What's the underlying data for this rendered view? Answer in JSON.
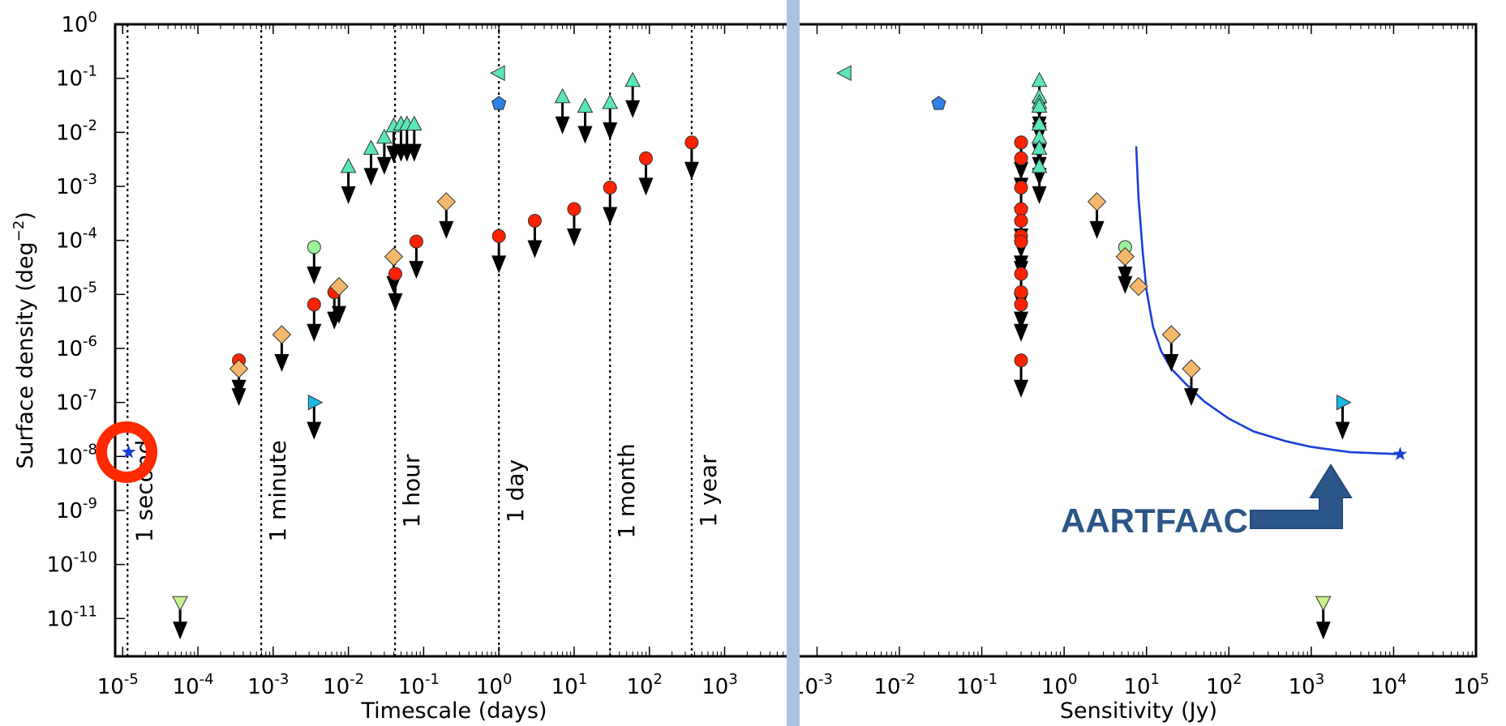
{
  "chart_data": [
    {
      "id": "timescale",
      "type": "scatter",
      "xlabel": "Timescale (days)",
      "ylabel": "Surface density (deg",
      "ylabel_sup": "−2",
      "ylabel_end": ")",
      "x_log": true,
      "y_log": true,
      "xlim_exp": [
        -5.1,
        3.9
      ],
      "ylim_exp": [
        -11.7,
        0.0
      ],
      "x_ticks": [
        "10",
        "10",
        "10",
        "10",
        "10",
        "10",
        "10",
        "10",
        "10"
      ],
      "x_tick_exps": [
        "-5",
        "-4",
        "-3",
        "-2",
        "-1",
        "0",
        "1",
        "2",
        "3"
      ],
      "y_ticks": [
        "10",
        "10",
        "10",
        "10",
        "10",
        "10",
        "10",
        "10",
        "10",
        "10",
        "10",
        "10"
      ],
      "y_tick_exps": [
        "0",
        "-1",
        "-2",
        "-3",
        "-4",
        "-5",
        "-6",
        "-7",
        "-8",
        "-9",
        "-10",
        "-11"
      ],
      "reference_lines": [
        {
          "label": "1 second",
          "x": 1.16e-05
        },
        {
          "label": "1 minute",
          "x": 0.000694
        },
        {
          "label": "1 hour",
          "x": 0.0417
        },
        {
          "label": "1 day",
          "x": 1
        },
        {
          "label": "1 month",
          "x": 30
        },
        {
          "label": "1 year",
          "x": 365
        }
      ],
      "points": [
        {
          "x": 1.2e-05,
          "y": 1.2e-08,
          "m": "star",
          "c": "#1a3fd6",
          "up": false,
          "highlight": true
        },
        {
          "x": 5.8e-05,
          "y": 2e-11,
          "m": "tri_down",
          "c": "#c6f08c",
          "up": true
        },
        {
          "x": 0.00035,
          "y": 6e-07,
          "m": "circle",
          "c": "#ff2200",
          "up": true
        },
        {
          "x": 0.00035,
          "y": 4.2e-07,
          "m": "diamond",
          "c": "#f5b86a",
          "up": true
        },
        {
          "x": 0.0013,
          "y": 1.8e-06,
          "m": "diamond",
          "c": "#f5b86a",
          "up": true
        },
        {
          "x": 0.0035,
          "y": 7.5e-05,
          "m": "circle",
          "c": "#9bf39b",
          "up": true
        },
        {
          "x": 0.0035,
          "y": 6.5e-06,
          "m": "circle",
          "c": "#ff2200",
          "up": true
        },
        {
          "x": 0.0035,
          "y": 1e-07,
          "m": "tri_right",
          "c": "#1ab8e6",
          "up": true
        },
        {
          "x": 0.0065,
          "y": 1.1e-05,
          "m": "circle",
          "c": "#ff2200",
          "up": true
        },
        {
          "x": 0.0075,
          "y": 1.4e-05,
          "m": "diamond",
          "c": "#f5b86a",
          "up": true
        },
        {
          "x": 0.01,
          "y": 0.0023,
          "m": "tri_up",
          "c": "#59e6b9",
          "up": true
        },
        {
          "x": 0.02,
          "y": 0.005,
          "m": "tri_up",
          "c": "#59e6b9",
          "up": true
        },
        {
          "x": 0.03,
          "y": 0.008,
          "m": "tri_up",
          "c": "#59e6b9",
          "up": true
        },
        {
          "x": 0.04,
          "y": 0.013,
          "m": "tri_up",
          "c": "#59e6b9",
          "up": true
        },
        {
          "x": 0.05,
          "y": 0.014,
          "m": "tri_up",
          "c": "#59e6b9",
          "up": true
        },
        {
          "x": 0.06,
          "y": 0.014,
          "m": "tri_up",
          "c": "#59e6b9",
          "up": true
        },
        {
          "x": 0.075,
          "y": 0.014,
          "m": "tri_up",
          "c": "#59e6b9",
          "up": true
        },
        {
          "x": 0.04,
          "y": 5e-05,
          "m": "diamond",
          "c": "#f5b86a",
          "up": true
        },
        {
          "x": 0.042,
          "y": 2.4e-05,
          "m": "circle",
          "c": "#ff2200",
          "up": true
        },
        {
          "x": 0.08,
          "y": 9.5e-05,
          "m": "circle",
          "c": "#ff2200",
          "up": true
        },
        {
          "x": 0.2,
          "y": 0.00052,
          "m": "diamond",
          "c": "#f5b86a",
          "up": true
        },
        {
          "x": 1,
          "y": 0.125,
          "m": "tri_left",
          "c": "#59e6b9",
          "up": false
        },
        {
          "x": 1,
          "y": 0.034,
          "m": "pentagon",
          "c": "#2e80e6",
          "up": false
        },
        {
          "x": 1,
          "y": 0.00012,
          "m": "circle",
          "c": "#ff2200",
          "up": true
        },
        {
          "x": 3,
          "y": 0.00023,
          "m": "circle",
          "c": "#ff2200",
          "up": true
        },
        {
          "x": 7,
          "y": 0.045,
          "m": "tri_up",
          "c": "#59e6b9",
          "up": true
        },
        {
          "x": 10,
          "y": 0.00038,
          "m": "circle",
          "c": "#ff2200",
          "up": true
        },
        {
          "x": 14,
          "y": 0.03,
          "m": "tri_up",
          "c": "#59e6b9",
          "up": true
        },
        {
          "x": 30,
          "y": 0.035,
          "m": "tri_up",
          "c": "#59e6b9",
          "up": true
        },
        {
          "x": 30,
          "y": 0.00095,
          "m": "circle",
          "c": "#ff2200",
          "up": true
        },
        {
          "x": 60,
          "y": 0.09,
          "m": "tri_up",
          "c": "#59e6b9",
          "up": true
        },
        {
          "x": 90,
          "y": 0.0033,
          "m": "circle",
          "c": "#ff2200",
          "up": true
        },
        {
          "x": 365,
          "y": 0.0065,
          "m": "circle",
          "c": "#ff2200",
          "up": true
        }
      ]
    },
    {
      "id": "sensitivity",
      "type": "scatter",
      "xlabel": "Sensitivity (Jy)",
      "x_log": true,
      "y_log": true,
      "xlim_exp": [
        -3.3,
        5.0
      ],
      "ylim_exp": [
        -11.7,
        0.0
      ],
      "x_ticks": [
        "10",
        "10",
        "10",
        "10",
        "10",
        "10",
        "10",
        "10",
        "10"
      ],
      "x_tick_exps": [
        "-3",
        "-2",
        "-1",
        "0",
        "1",
        "2",
        "3",
        "4",
        "5"
      ],
      "curve": {
        "color": "#1a3fd6",
        "x": [
          7.5,
          8,
          9,
          10,
          12,
          15,
          20,
          30,
          50,
          100,
          200,
          500,
          1000,
          3000,
          12000
        ],
        "y": [
          0.0055,
          0.0006,
          6e-05,
          1.2e-05,
          2.5e-06,
          9e-07,
          4.2e-07,
          2.2e-07,
          1.05e-07,
          5e-08,
          2.9e-08,
          1.9e-08,
          1.5e-08,
          1.2e-08,
          1.1e-08
        ]
      },
      "points": [
        {
          "x": 0.0022,
          "y": 0.125,
          "m": "tri_left",
          "c": "#59e6b9",
          "up": false
        },
        {
          "x": 0.03,
          "y": 0.034,
          "m": "pentagon",
          "c": "#2e80e6",
          "up": false
        },
        {
          "x": 0.3,
          "y": 0.0065,
          "m": "circle",
          "c": "#ff2200",
          "up": true
        },
        {
          "x": 0.3,
          "y": 0.0033,
          "m": "circle",
          "c": "#ff2200",
          "up": true
        },
        {
          "x": 0.3,
          "y": 0.00095,
          "m": "circle",
          "c": "#ff2200",
          "up": true
        },
        {
          "x": 0.3,
          "y": 0.00038,
          "m": "circle",
          "c": "#ff2200",
          "up": true
        },
        {
          "x": 0.3,
          "y": 0.00023,
          "m": "circle",
          "c": "#ff2200",
          "up": true
        },
        {
          "x": 0.3,
          "y": 0.00012,
          "m": "circle",
          "c": "#ff2200",
          "up": true
        },
        {
          "x": 0.3,
          "y": 9.5e-05,
          "m": "circle",
          "c": "#ff2200",
          "up": true
        },
        {
          "x": 0.3,
          "y": 2.4e-05,
          "m": "circle",
          "c": "#ff2200",
          "up": true
        },
        {
          "x": 0.3,
          "y": 1.1e-05,
          "m": "circle",
          "c": "#ff2200",
          "up": true
        },
        {
          "x": 0.3,
          "y": 6.5e-06,
          "m": "circle",
          "c": "#ff2200",
          "up": true
        },
        {
          "x": 0.3,
          "y": 6e-07,
          "m": "circle",
          "c": "#ff2200",
          "up": true
        },
        {
          "x": 0.5,
          "y": 0.09,
          "m": "tri_up",
          "c": "#59e6b9",
          "up": true
        },
        {
          "x": 0.5,
          "y": 0.045,
          "m": "tri_up",
          "c": "#59e6b9",
          "up": true
        },
        {
          "x": 0.5,
          "y": 0.035,
          "m": "tri_up",
          "c": "#59e6b9",
          "up": true
        },
        {
          "x": 0.5,
          "y": 0.03,
          "m": "tri_up",
          "c": "#59e6b9",
          "up": true
        },
        {
          "x": 0.5,
          "y": 0.014,
          "m": "tri_up",
          "c": "#59e6b9",
          "up": true
        },
        {
          "x": 0.5,
          "y": 0.008,
          "m": "tri_up",
          "c": "#59e6b9",
          "up": true
        },
        {
          "x": 0.5,
          "y": 0.005,
          "m": "tri_up",
          "c": "#59e6b9",
          "up": true
        },
        {
          "x": 0.5,
          "y": 0.0023,
          "m": "tri_up",
          "c": "#59e6b9",
          "up": true
        },
        {
          "x": 2.5,
          "y": 0.00052,
          "m": "diamond",
          "c": "#f5b86a",
          "up": true
        },
        {
          "x": 5.5,
          "y": 7.5e-05,
          "m": "circle",
          "c": "#9bf39b",
          "up": true
        },
        {
          "x": 5.5,
          "y": 5e-05,
          "m": "diamond",
          "c": "#f5b86a",
          "up": true
        },
        {
          "x": 8,
          "y": 1.4e-05,
          "m": "diamond",
          "c": "#f5b86a",
          "up": false
        },
        {
          "x": 20,
          "y": 1.8e-06,
          "m": "diamond",
          "c": "#f5b86a",
          "up": true
        },
        {
          "x": 35,
          "y": 4.2e-07,
          "m": "diamond",
          "c": "#f5b86a",
          "up": true
        },
        {
          "x": 1400,
          "y": 2e-11,
          "m": "tri_down",
          "c": "#c6f08c",
          "up": true
        },
        {
          "x": 2400,
          "y": 1e-07,
          "m": "tri_right",
          "c": "#1ab8e6",
          "up": true
        },
        {
          "x": 12000,
          "y": 1.1e-08,
          "m": "star",
          "c": "#1a3fd6",
          "up": false
        }
      ]
    }
  ],
  "callout": {
    "text": "AARTFAAC",
    "color": "#2b5687"
  },
  "divider": {
    "color": "#a9c2e0"
  },
  "highlight": {
    "color": "#ff2a00"
  }
}
